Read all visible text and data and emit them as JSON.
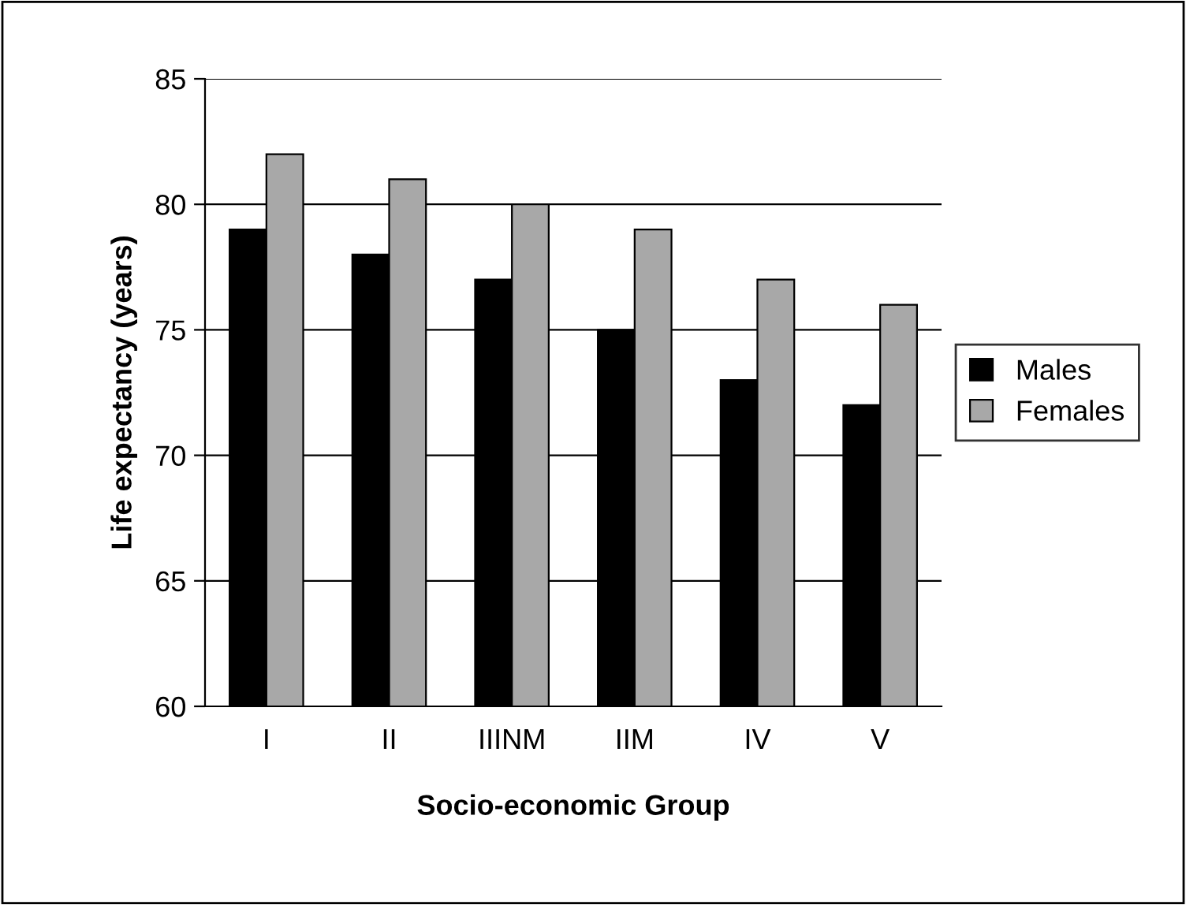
{
  "chart_data": {
    "type": "bar",
    "xlabel": "Socio-economic Group",
    "ylabel": "Life expectancy (years)",
    "categories": [
      "I",
      "II",
      "IIINM",
      "IIM",
      "IV",
      "V"
    ],
    "series": [
      {
        "name": "Males",
        "color": "#000000",
        "values": [
          79,
          78,
          77,
          75,
          73,
          72
        ]
      },
      {
        "name": "Females",
        "color": "#a8a8a8",
        "values": [
          82,
          81,
          80,
          79,
          77,
          76
        ]
      }
    ],
    "ylim": [
      60,
      85
    ],
    "yticks": [
      60,
      65,
      70,
      75,
      80,
      85
    ],
    "grid": "y",
    "legend": "right"
  }
}
